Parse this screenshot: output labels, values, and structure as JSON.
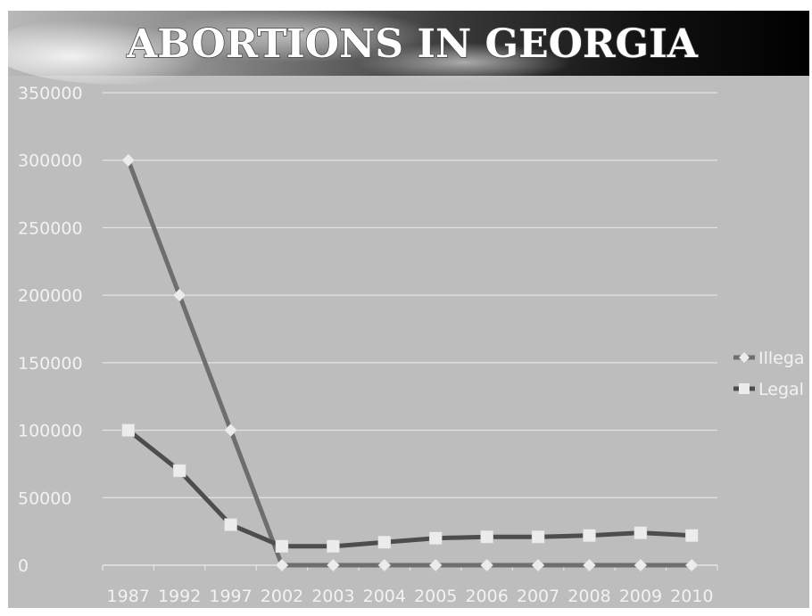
{
  "slide": {
    "title": "ABORTIONS IN GEORGIA"
  },
  "colors": {
    "plot_background": "#bdbdbd",
    "grid": "#e4e4e4",
    "tick_label": "#f2f2f2",
    "illegal_line": "#6e6e6e",
    "legal_line": "#4d4d4d",
    "marker": "#ececec"
  },
  "chart_data": {
    "type": "line",
    "title": "ABORTIONS IN GEORGIA",
    "xlabel": "",
    "ylabel": "",
    "categories": [
      "1987",
      "1992",
      "1997",
      "2002",
      "2003",
      "2004",
      "2005",
      "2006",
      "2007",
      "2008",
      "2009",
      "2010"
    ],
    "ylim": [
      0,
      350000
    ],
    "yticks": [
      0,
      50000,
      100000,
      150000,
      200000,
      250000,
      300000,
      350000
    ],
    "grid": true,
    "legend": "right",
    "series": [
      {
        "name": "Illega",
        "marker": "diamond",
        "values": [
          300000,
          200000,
          100000,
          0,
          0,
          0,
          0,
          0,
          0,
          0,
          0,
          0
        ]
      },
      {
        "name": "Legal",
        "marker": "square",
        "values": [
          100000,
          70000,
          30000,
          14000,
          14000,
          17000,
          20000,
          21000,
          21000,
          22000,
          24000,
          22000
        ]
      }
    ]
  }
}
